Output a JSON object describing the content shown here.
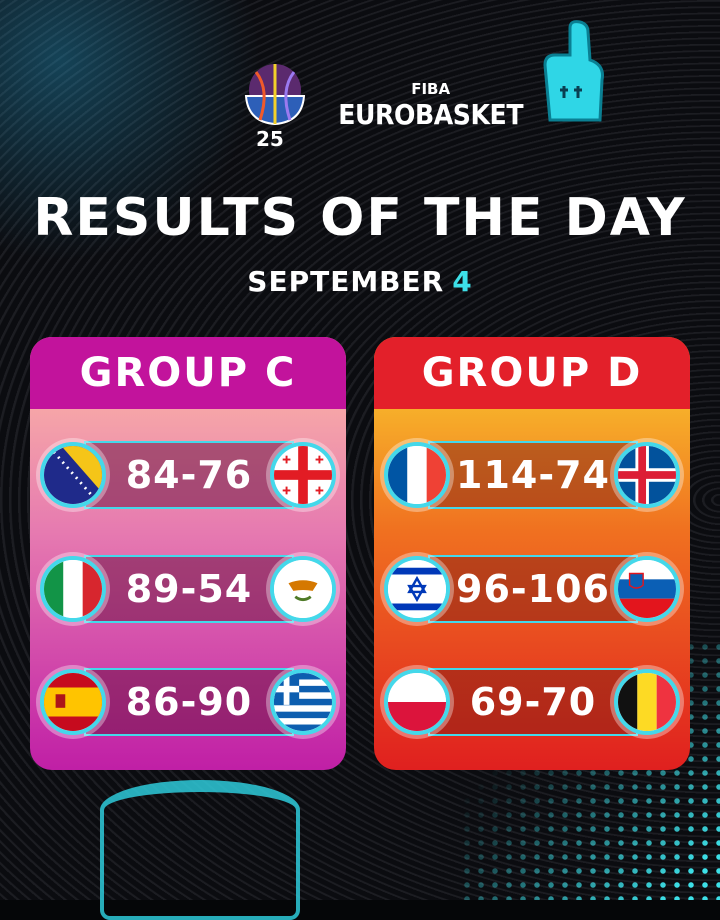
{
  "brand": {
    "org": "FIBA",
    "event": "EUROBASKET",
    "logo_year": "25"
  },
  "title": "RESULTS OF THE DAY",
  "date": {
    "month": "SEPTEMBER",
    "day": "4"
  },
  "colors": {
    "accent": "#3de0e8",
    "group_c": "#c2139c",
    "group_d": "#e3202a"
  },
  "groups": [
    {
      "name": "GROUP C",
      "games": [
        {
          "home": "Bosnia and Herzegovina",
          "score": "84-76",
          "away": "Georgia"
        },
        {
          "home": "Italy",
          "score": "89-54",
          "away": "Cyprus"
        },
        {
          "home": "Spain",
          "score": "86-90",
          "away": "Greece"
        }
      ]
    },
    {
      "name": "GROUP D",
      "games": [
        {
          "home": "France",
          "score": "114-74",
          "away": "Iceland"
        },
        {
          "home": "Israel",
          "score": "96-106",
          "away": "Slovenia"
        },
        {
          "home": "Poland",
          "score": "69-70",
          "away": "Belgium"
        }
      ]
    }
  ]
}
